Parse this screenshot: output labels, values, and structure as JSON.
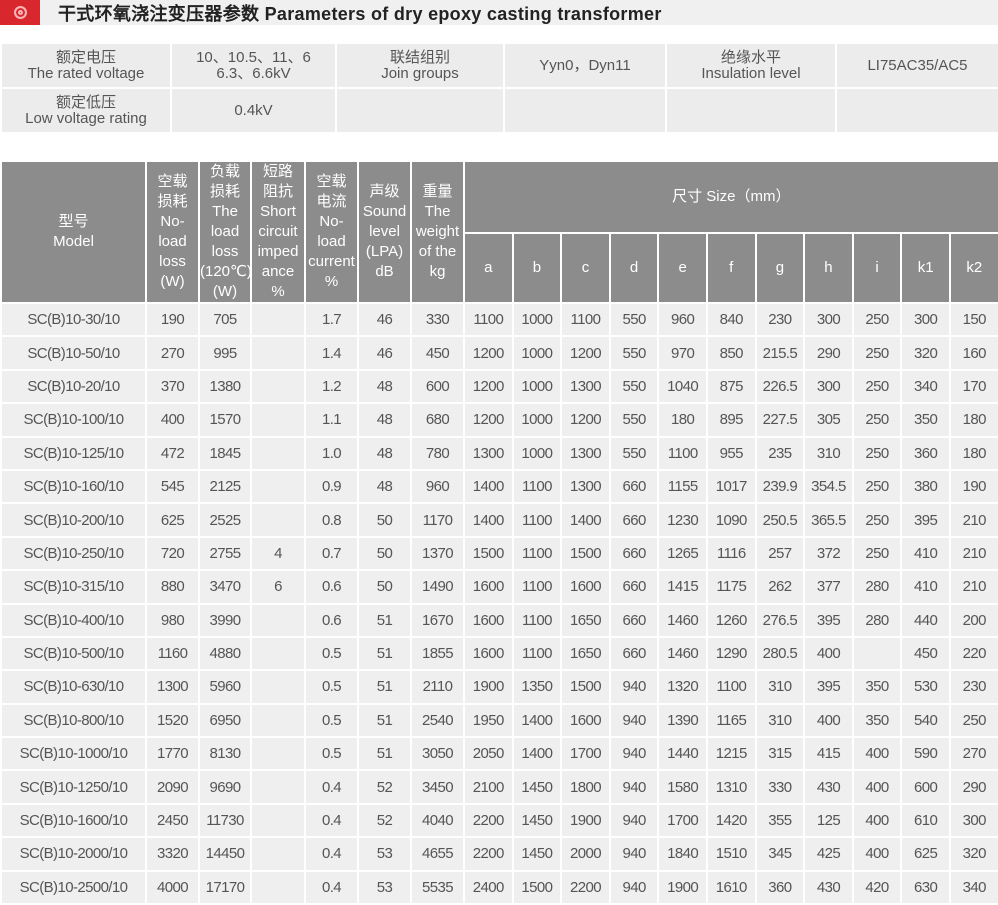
{
  "title": "干式环氧浇注变压器参数 Parameters of dry epoxy casting transformer",
  "logo_icon": "red-circle-logo-icon",
  "spec": {
    "rated_voltage_label_cn": "额定电压",
    "rated_voltage_label_en": "The rated voltage",
    "rated_voltage_line1": "10、10.5、11、6",
    "rated_voltage_line2": "6.3、6.6kV",
    "join_groups_label_cn": "联结组别",
    "join_groups_label_en": "Join groups",
    "join_groups_value": "Yyn0，Dyn11",
    "insulation_label_cn": "绝缘水平",
    "insulation_label_en": "Insulation level",
    "insulation_value": "LI75AC35/AC5",
    "low_voltage_label_cn": "额定低压",
    "low_voltage_label_en": "Low voltage rating",
    "low_voltage_value": "0.4kV"
  },
  "headers": {
    "model": [
      "型号",
      "Model"
    ],
    "no_load_loss": [
      "空载",
      "损耗",
      "No-",
      "load",
      "loss",
      "(W)"
    ],
    "load_loss": [
      "负载",
      "损耗",
      "The",
      "load",
      "loss",
      "(120℃)",
      "(W)"
    ],
    "impedance": [
      "短路",
      "阻抗",
      "Short",
      "circuit",
      "imped",
      "ance",
      "%"
    ],
    "no_load_current": [
      "空载",
      "电流",
      "No-",
      "load",
      "current",
      "%"
    ],
    "sound": [
      "声级",
      "Sound",
      "level",
      "(LPA)",
      "dB"
    ],
    "weight": [
      "重量",
      "The",
      "weight",
      "of the",
      "kg"
    ],
    "size": "尺寸 Size（mm）",
    "dims": [
      "a",
      "b",
      "c",
      "d",
      "e",
      "f",
      "g",
      "h",
      "i",
      "k1",
      "k2"
    ]
  },
  "rows": [
    [
      "SC(B)10-30/10",
      "190",
      "705",
      "",
      "1.7",
      "46",
      "330",
      "1100",
      "1000",
      "1100",
      "550",
      "960",
      "840",
      "230",
      "300",
      "250",
      "300",
      "150"
    ],
    [
      "SC(B)10-50/10",
      "270",
      "995",
      "",
      "1.4",
      "46",
      "450",
      "1200",
      "1000",
      "1200",
      "550",
      "970",
      "850",
      "215.5",
      "290",
      "250",
      "320",
      "160"
    ],
    [
      "SC(B)10-20/10",
      "370",
      "1380",
      "",
      "1.2",
      "48",
      "600",
      "1200",
      "1000",
      "1300",
      "550",
      "1040",
      "875",
      "226.5",
      "300",
      "250",
      "340",
      "170"
    ],
    [
      "SC(B)10-100/10",
      "400",
      "1570",
      "",
      "1.1",
      "48",
      "680",
      "1200",
      "1000",
      "1200",
      "550",
      "180",
      "895",
      "227.5",
      "305",
      "250",
      "350",
      "180"
    ],
    [
      "SC(B)10-125/10",
      "472",
      "1845",
      "",
      "1.0",
      "48",
      "780",
      "1300",
      "1000",
      "1300",
      "550",
      "1100",
      "955",
      "235",
      "310",
      "250",
      "360",
      "180"
    ],
    [
      "SC(B)10-160/10",
      "545",
      "2125",
      "",
      "0.9",
      "48",
      "960",
      "1400",
      "1100",
      "1300",
      "660",
      "1155",
      "1017",
      "239.9",
      "354.5",
      "250",
      "380",
      "190"
    ],
    [
      "SC(B)10-200/10",
      "625",
      "2525",
      "",
      "0.8",
      "50",
      "1170",
      "1400",
      "1100",
      "1400",
      "660",
      "1230",
      "1090",
      "250.5",
      "365.5",
      "250",
      "395",
      "210"
    ],
    [
      "SC(B)10-250/10",
      "720",
      "2755",
      "4",
      "0.7",
      "50",
      "1370",
      "1500",
      "1100",
      "1500",
      "660",
      "1265",
      "1116",
      "257",
      "372",
      "250",
      "410",
      "210"
    ],
    [
      "SC(B)10-315/10",
      "880",
      "3470",
      "6",
      "0.6",
      "50",
      "1490",
      "1600",
      "1100",
      "1600",
      "660",
      "1415",
      "1175",
      "262",
      "377",
      "280",
      "410",
      "210"
    ],
    [
      "SC(B)10-400/10",
      "980",
      "3990",
      "",
      "0.6",
      "51",
      "1670",
      "1600",
      "1100",
      "1650",
      "660",
      "1460",
      "1260",
      "276.5",
      "395",
      "280",
      "440",
      "200"
    ],
    [
      "SC(B)10-500/10",
      "1160",
      "4880",
      "",
      "0.5",
      "51",
      "1855",
      "1600",
      "1100",
      "1650",
      "660",
      "1460",
      "1290",
      "280.5",
      "400",
      "",
      "450",
      "220"
    ],
    [
      "SC(B)10-630/10",
      "1300",
      "5960",
      "",
      "0.5",
      "51",
      "2110",
      "1900",
      "1350",
      "1500",
      "940",
      "1320",
      "1100",
      "310",
      "395",
      "350",
      "530",
      "230"
    ],
    [
      "SC(B)10-800/10",
      "1520",
      "6950",
      "",
      "0.5",
      "51",
      "2540",
      "1950",
      "1400",
      "1600",
      "940",
      "1390",
      "1165",
      "310",
      "400",
      "350",
      "540",
      "250"
    ],
    [
      "SC(B)10-1000/10",
      "1770",
      "8130",
      "",
      "0.5",
      "51",
      "3050",
      "2050",
      "1400",
      "1700",
      "940",
      "1440",
      "1215",
      "315",
      "415",
      "400",
      "590",
      "270"
    ],
    [
      "SC(B)10-1250/10",
      "2090",
      "9690",
      "",
      "0.4",
      "52",
      "3450",
      "2100",
      "1450",
      "1800",
      "940",
      "1580",
      "1310",
      "330",
      "430",
      "400",
      "600",
      "290"
    ],
    [
      "SC(B)10-1600/10",
      "2450",
      "11730",
      "",
      "0.4",
      "52",
      "4040",
      "2200",
      "1450",
      "1900",
      "940",
      "1700",
      "1420",
      "355",
      "125",
      "400",
      "610",
      "300"
    ],
    [
      "SC(B)10-2000/10",
      "3320",
      "14450",
      "",
      "0.4",
      "53",
      "4655",
      "2200",
      "1450",
      "2000",
      "940",
      "1840",
      "1510",
      "345",
      "425",
      "400",
      "625",
      "320"
    ],
    [
      "SC(B)10-2500/10",
      "4000",
      "17170",
      "",
      "0.4",
      "53",
      "5535",
      "2400",
      "1500",
      "2200",
      "940",
      "1900",
      "1610",
      "360",
      "430",
      "420",
      "630",
      "340"
    ]
  ]
}
